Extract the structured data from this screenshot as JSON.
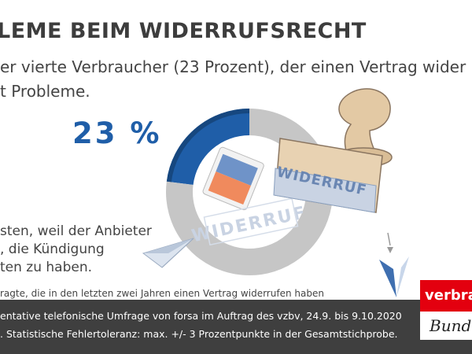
{
  "headline": {
    "title": "LEME BEIM WIDERRUFSRECHT",
    "subtitle_line1": "er vierte Verbraucher (23 Prozent), der einen Vertrag wider",
    "subtitle_line2": "t Probleme."
  },
  "big_percent": "23 %",
  "note": {
    "line1": "sten, weil der Anbieter",
    "line2": ", die Kündigung",
    "line3": "ten zu haben."
  },
  "base_text": "ragte, die in den letzten zwei Jahren einen Vertrag widerrufen haben",
  "illustration": {
    "stamp_text": "WIDERRUF",
    "imprint_text": "WIDERRUF"
  },
  "footer": {
    "line1": "entative telefonische Umfrage von forsa im Auftrag des vzbv, 24.9. bis 9.10.2020",
    "line2": ". Statistische Fehlertoleranz: max. +/- 3 Prozentpunkte in der Gesamtstichprobe."
  },
  "logo": {
    "top_text": "verbrau",
    "bottom_text": "Bund"
  },
  "colors": {
    "highlight": "#1f5ea8",
    "remainder": "#c6c6c6",
    "footer_bg": "#3f3f3f",
    "logo_red": "#e3000f"
  },
  "chart_data": {
    "type": "pie",
    "donut": true,
    "categories": [
      "",
      ""
    ],
    "values": [
      23,
      77
    ],
    "data_labels": [
      "23 %",
      ""
    ],
    "colors": [
      "#1f5ea8",
      "#c6c6c6"
    ]
  }
}
